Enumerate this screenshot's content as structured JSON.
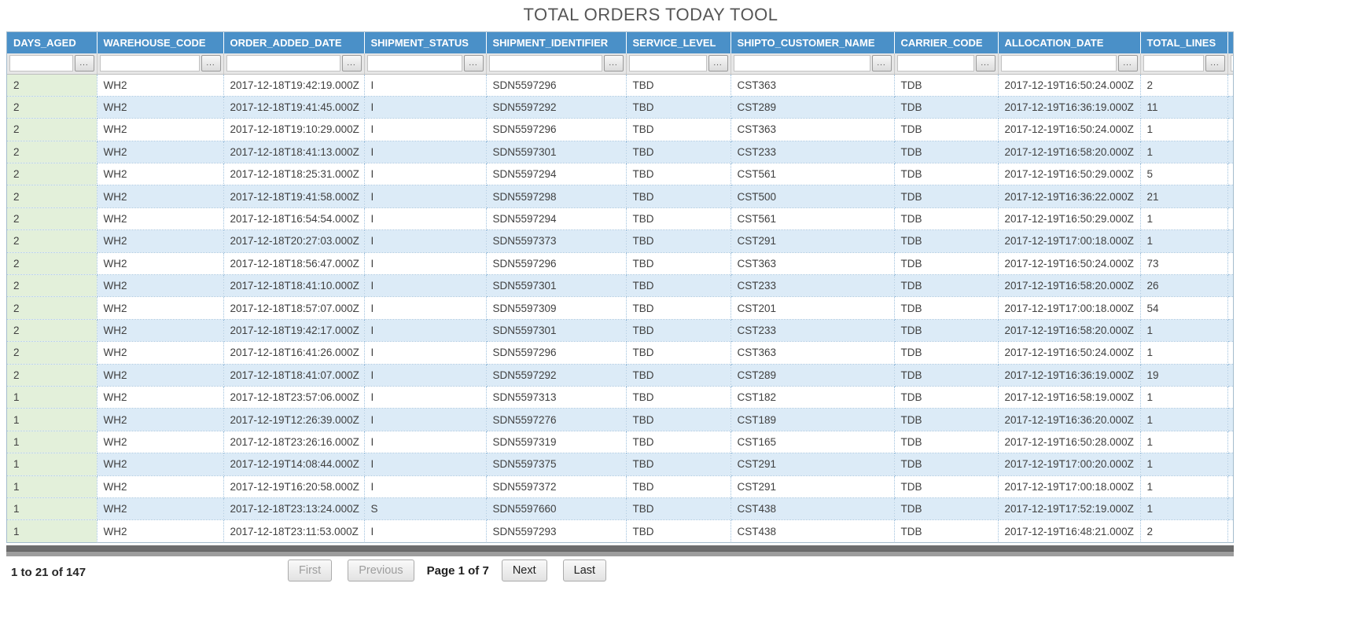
{
  "title": "TOTAL ORDERS TODAY TOOL",
  "table": {
    "columns": [
      "DAYS_AGED",
      "WAREHOUSE_CODE",
      "ORDER_ADDED_DATE",
      "SHIPMENT_STATUS",
      "SHIPMENT_IDENTIFIER",
      "SERVICE_LEVEL",
      "SHIPTO_CUSTOMER_NAME",
      "CARRIER_CODE",
      "ALLOCATION_DATE",
      "TOTAL_LINES"
    ],
    "filter_placeholder": "",
    "filter_button_label": "...",
    "rows": [
      [
        "2",
        "WH2",
        "2017-12-18T19:42:19.000Z",
        "I",
        "SDN5597296",
        "TBD",
        "CST363",
        "TDB",
        "2017-12-19T16:50:24.000Z",
        "2"
      ],
      [
        "2",
        "WH2",
        "2017-12-18T19:41:45.000Z",
        "I",
        "SDN5597292",
        "TBD",
        "CST289",
        "TDB",
        "2017-12-19T16:36:19.000Z",
        "11"
      ],
      [
        "2",
        "WH2",
        "2017-12-18T19:10:29.000Z",
        "I",
        "SDN5597296",
        "TBD",
        "CST363",
        "TDB",
        "2017-12-19T16:50:24.000Z",
        "1"
      ],
      [
        "2",
        "WH2",
        "2017-12-18T18:41:13.000Z",
        "I",
        "SDN5597301",
        "TBD",
        "CST233",
        "TDB",
        "2017-12-19T16:58:20.000Z",
        "1"
      ],
      [
        "2",
        "WH2",
        "2017-12-18T18:25:31.000Z",
        "I",
        "SDN5597294",
        "TBD",
        "CST561",
        "TDB",
        "2017-12-19T16:50:29.000Z",
        "5"
      ],
      [
        "2",
        "WH2",
        "2017-12-18T19:41:58.000Z",
        "I",
        "SDN5597298",
        "TBD",
        "CST500",
        "TDB",
        "2017-12-19T16:36:22.000Z",
        "21"
      ],
      [
        "2",
        "WH2",
        "2017-12-18T16:54:54.000Z",
        "I",
        "SDN5597294",
        "TBD",
        "CST561",
        "TDB",
        "2017-12-19T16:50:29.000Z",
        "1"
      ],
      [
        "2",
        "WH2",
        "2017-12-18T20:27:03.000Z",
        "I",
        "SDN5597373",
        "TBD",
        "CST291",
        "TDB",
        "2017-12-19T17:00:18.000Z",
        "1"
      ],
      [
        "2",
        "WH2",
        "2017-12-18T18:56:47.000Z",
        "I",
        "SDN5597296",
        "TBD",
        "CST363",
        "TDB",
        "2017-12-19T16:50:24.000Z",
        "73"
      ],
      [
        "2",
        "WH2",
        "2017-12-18T18:41:10.000Z",
        "I",
        "SDN5597301",
        "TBD",
        "CST233",
        "TDB",
        "2017-12-19T16:58:20.000Z",
        "26"
      ],
      [
        "2",
        "WH2",
        "2017-12-18T18:57:07.000Z",
        "I",
        "SDN5597309",
        "TBD",
        "CST201",
        "TDB",
        "2017-12-19T17:00:18.000Z",
        "54"
      ],
      [
        "2",
        "WH2",
        "2017-12-18T19:42:17.000Z",
        "I",
        "SDN5597301",
        "TBD",
        "CST233",
        "TDB",
        "2017-12-19T16:58:20.000Z",
        "1"
      ],
      [
        "2",
        "WH2",
        "2017-12-18T16:41:26.000Z",
        "I",
        "SDN5597296",
        "TBD",
        "CST363",
        "TDB",
        "2017-12-19T16:50:24.000Z",
        "1"
      ],
      [
        "2",
        "WH2",
        "2017-12-18T18:41:07.000Z",
        "I",
        "SDN5597292",
        "TBD",
        "CST289",
        "TDB",
        "2017-12-19T16:36:19.000Z",
        "19"
      ],
      [
        "1",
        "WH2",
        "2017-12-18T23:57:06.000Z",
        "I",
        "SDN5597313",
        "TBD",
        "CST182",
        "TDB",
        "2017-12-19T16:58:19.000Z",
        "1"
      ],
      [
        "1",
        "WH2",
        "2017-12-19T12:26:39.000Z",
        "I",
        "SDN5597276",
        "TBD",
        "CST189",
        "TDB",
        "2017-12-19T16:36:20.000Z",
        "1"
      ],
      [
        "1",
        "WH2",
        "2017-12-18T23:26:16.000Z",
        "I",
        "SDN5597319",
        "TBD",
        "CST165",
        "TDB",
        "2017-12-19T16:50:28.000Z",
        "1"
      ],
      [
        "1",
        "WH2",
        "2017-12-19T14:08:44.000Z",
        "I",
        "SDN5597375",
        "TBD",
        "CST291",
        "TDB",
        "2017-12-19T17:00:20.000Z",
        "1"
      ],
      [
        "1",
        "WH2",
        "2017-12-19T16:20:58.000Z",
        "I",
        "SDN5597372",
        "TBD",
        "CST291",
        "TDB",
        "2017-12-19T17:00:18.000Z",
        "1"
      ],
      [
        "1",
        "WH2",
        "2017-12-18T23:13:24.000Z",
        "S",
        "SDN5597660",
        "TBD",
        "CST438",
        "TDB",
        "2017-12-19T17:52:19.000Z",
        "1"
      ],
      [
        "1",
        "WH2",
        "2017-12-18T23:11:53.000Z",
        "I",
        "SDN5597293",
        "TBD",
        "CST438",
        "TDB",
        "2017-12-19T16:48:21.000Z",
        "2"
      ]
    ]
  },
  "footer": {
    "records_label": "1 to 21 of 147",
    "pager": {
      "buttons": [
        {
          "label": "First",
          "enabled": false
        },
        {
          "label": "Previous",
          "enabled": false
        },
        {
          "label": "Next",
          "enabled": true
        },
        {
          "label": "Last",
          "enabled": true
        }
      ],
      "page_status": "Page 1 of 7"
    }
  },
  "colors": {
    "header_bg": "#4a90c8",
    "row_alt_bg": "#dcebf7",
    "days_aged_col_bg": "#e3f0da",
    "dotted_border": "#9fc1dd"
  }
}
